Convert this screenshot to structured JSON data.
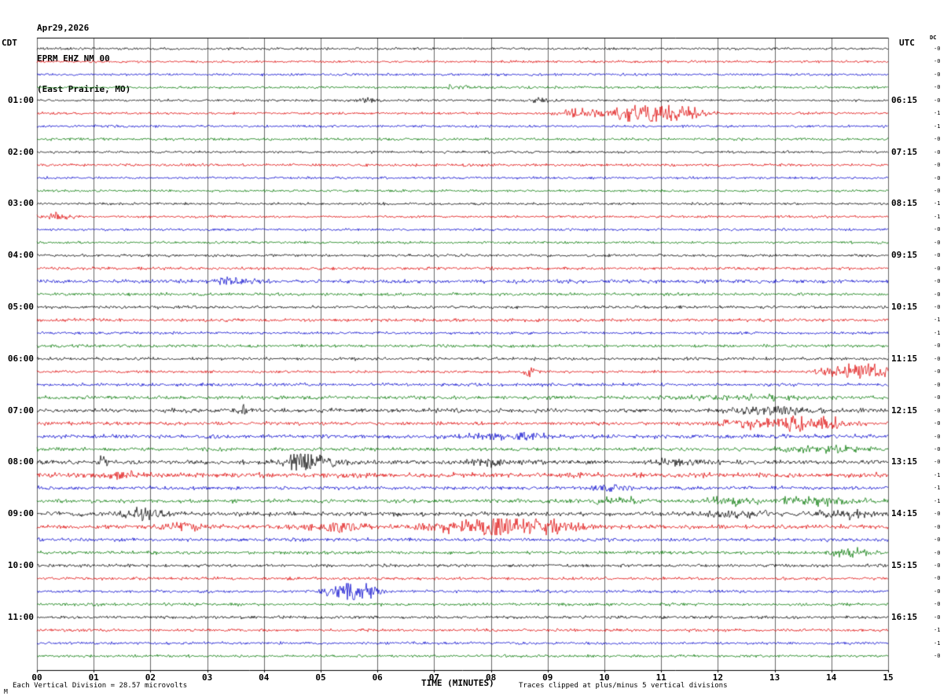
{
  "header": {
    "date": "Apr29,2026",
    "station": "EPRM EHZ NM 00",
    "location": "(East Prairie, MO)"
  },
  "axes": {
    "left_tz": "CDT",
    "right_tz": "UTC",
    "dc_label": "DC",
    "x_title": "TIME (MINUTES)"
  },
  "footer": {
    "left": "Each Vertical Division =   28.57 microvolts",
    "right": "Traces clipped at plus/minus 5 vertical divisions",
    "corner": "M"
  },
  "chart_data": {
    "type": "line",
    "kind": "helicorder-seismogram",
    "title": "EPRM EHZ NM 00 (East Prairie, MO) Apr29,2026",
    "x_range_minutes": [
      0,
      15
    ],
    "row_count": 48,
    "rows_per_hour": 4,
    "minutes_per_row": 15,
    "microvolts_per_division": 28.57,
    "clip_divisions": 5,
    "grid": true,
    "grid_color": "#666666",
    "trace_colors": [
      "#000000",
      "#dd0000",
      "#0000cc",
      "#007700"
    ],
    "x_ticks": [
      "00",
      "01",
      "02",
      "03",
      "04",
      "05",
      "06",
      "07",
      "08",
      "09",
      "10",
      "11",
      "12",
      "13",
      "14",
      "15"
    ],
    "left_time_labels": [
      {
        "row": 4,
        "label": "01:00"
      },
      {
        "row": 8,
        "label": "02:00"
      },
      {
        "row": 12,
        "label": "03:00"
      },
      {
        "row": 16,
        "label": "04:00"
      },
      {
        "row": 20,
        "label": "05:00"
      },
      {
        "row": 24,
        "label": "06:00"
      },
      {
        "row": 28,
        "label": "07:00"
      },
      {
        "row": 32,
        "label": "08:00"
      },
      {
        "row": 36,
        "label": "09:00"
      },
      {
        "row": 40,
        "label": "10:00"
      },
      {
        "row": 44,
        "label": "11:00"
      }
    ],
    "right_time_labels": [
      {
        "row": 4,
        "label": "06:15"
      },
      {
        "row": 8,
        "label": "07:15"
      },
      {
        "row": 12,
        "label": "08:15"
      },
      {
        "row": 16,
        "label": "09:15"
      },
      {
        "row": 20,
        "label": "10:15"
      },
      {
        "row": 24,
        "label": "11:15"
      },
      {
        "row": 28,
        "label": "12:15"
      },
      {
        "row": 32,
        "label": "13:15"
      },
      {
        "row": 36,
        "label": "14:15"
      },
      {
        "row": 40,
        "label": "15:15"
      },
      {
        "row": 44,
        "label": "16:15"
      }
    ],
    "dc_offsets": [
      "-0",
      "-0",
      "-0",
      "-0",
      "-0",
      "-1",
      "-1",
      "-0",
      "-0",
      "-0",
      "-0",
      "-0",
      "-1",
      "-1",
      "-0",
      "-0",
      "-0",
      "-0",
      "-0",
      "-0",
      "-0",
      "-1",
      "-1",
      "-0",
      "-0",
      "-0",
      "-0",
      "-0",
      "-0",
      "-0",
      "-0",
      "-0",
      "-0",
      "-1",
      "-1",
      "-1",
      "-0",
      "-0",
      "-0",
      "-0",
      "-0",
      "-0",
      "-0",
      "-0",
      "-0",
      "-1",
      "-1",
      "-0"
    ],
    "event_format": [
      "center_minute",
      "amplitude_px",
      "width_minutes"
    ],
    "rows": [
      {
        "base": 1.0,
        "events": []
      },
      {
        "base": 1.0,
        "events": []
      },
      {
        "base": 1.0,
        "events": []
      },
      {
        "base": 1.0,
        "events": [
          [
            7.4,
            1.6,
            0.15
          ]
        ]
      },
      {
        "base": 1.0,
        "events": [
          [
            5.8,
            2.2,
            0.12
          ],
          [
            8.9,
            1.8,
            0.15
          ]
        ]
      },
      {
        "base": 1.0,
        "events": [
          [
            9.6,
            4,
            0.25
          ],
          [
            10.4,
            5,
            0.2
          ],
          [
            11.0,
            9,
            0.3
          ],
          [
            11.5,
            3.5,
            0.25
          ]
        ]
      },
      {
        "base": 1.0,
        "events": []
      },
      {
        "base": 1.1,
        "events": []
      },
      {
        "base": 1.0,
        "events": []
      },
      {
        "base": 1.1,
        "events": []
      },
      {
        "base": 1.0,
        "events": []
      },
      {
        "base": 1.0,
        "events": []
      },
      {
        "base": 1.0,
        "events": []
      },
      {
        "base": 1.0,
        "events": [
          [
            0.35,
            3.5,
            0.15
          ]
        ]
      },
      {
        "base": 1.0,
        "events": []
      },
      {
        "base": 1.0,
        "events": []
      },
      {
        "base": 1.1,
        "events": []
      },
      {
        "base": 1.2,
        "events": []
      },
      {
        "base": 1.5,
        "events": [
          [
            3.5,
            2.5,
            0.25
          ]
        ]
      },
      {
        "base": 1.2,
        "events": []
      },
      {
        "base": 1.2,
        "events": []
      },
      {
        "base": 1.3,
        "events": []
      },
      {
        "base": 1.1,
        "events": []
      },
      {
        "base": 1.2,
        "events": []
      },
      {
        "base": 1.2,
        "events": []
      },
      {
        "base": 1.1,
        "events": [
          [
            8.7,
            4.5,
            0.08
          ],
          [
            14.3,
            6,
            0.3
          ],
          [
            14.8,
            4,
            0.2
          ]
        ]
      },
      {
        "base": 1.3,
        "events": []
      },
      {
        "base": 1.4,
        "events": [
          [
            12.5,
            1.5,
            0.8
          ]
        ]
      },
      {
        "base": 1.7,
        "events": [
          [
            3.62,
            5,
            0.04
          ],
          [
            12.9,
            2.5,
            0.5
          ]
        ]
      },
      {
        "base": 1.4,
        "events": [
          [
            12.4,
            2.5,
            0.3
          ],
          [
            13.3,
            5,
            0.35
          ],
          [
            13.9,
            3.5,
            0.3
          ]
        ]
      },
      {
        "base": 1.6,
        "events": [
          [
            8.2,
            2.5,
            0.5
          ]
        ]
      },
      {
        "base": 1.4,
        "events": [
          [
            13.9,
            2.5,
            0.5
          ]
        ]
      },
      {
        "base": 1.7,
        "events": [
          [
            1.15,
            3.5,
            0.06
          ],
          [
            4.6,
            6,
            0.2
          ],
          [
            4.95,
            4.5,
            0.25
          ],
          [
            8.0,
            2.5,
            0.3
          ],
          [
            11.3,
            2.5,
            0.3
          ]
        ]
      },
      {
        "base": 2.0,
        "events": [
          [
            1.4,
            2.5,
            0.25
          ]
        ]
      },
      {
        "base": 1.5,
        "events": [
          [
            10.1,
            2,
            0.2
          ]
        ]
      },
      {
        "base": 1.5,
        "events": [
          [
            10.2,
            2.5,
            0.3
          ],
          [
            12.2,
            3,
            0.25
          ],
          [
            13.6,
            3.5,
            0.5
          ]
        ]
      },
      {
        "base": 1.7,
        "events": [
          [
            1.9,
            3.5,
            0.3
          ],
          [
            12.3,
            2.5,
            0.4
          ],
          [
            14.2,
            2.5,
            0.3
          ]
        ]
      },
      {
        "base": 1.7,
        "events": [
          [
            2.6,
            3.5,
            0.25
          ],
          [
            5.2,
            4,
            0.35
          ],
          [
            7.3,
            3.5,
            0.4
          ],
          [
            8.0,
            8,
            0.2
          ],
          [
            8.6,
            5,
            0.35
          ],
          [
            9.2,
            4,
            0.3
          ]
        ]
      },
      {
        "base": 1.4,
        "events": []
      },
      {
        "base": 1.3,
        "events": [
          [
            14.35,
            4.5,
            0.2
          ]
        ]
      },
      {
        "base": 1.3,
        "events": []
      },
      {
        "base": 1.2,
        "events": []
      },
      {
        "base": 1.1,
        "events": [
          [
            5.45,
            7,
            0.25
          ],
          [
            5.85,
            3.5,
            0.15
          ]
        ]
      },
      {
        "base": 1.2,
        "events": []
      },
      {
        "base": 1.2,
        "events": []
      },
      {
        "base": 1.2,
        "events": []
      },
      {
        "base": 1.1,
        "events": []
      },
      {
        "base": 1.1,
        "events": []
      }
    ]
  }
}
